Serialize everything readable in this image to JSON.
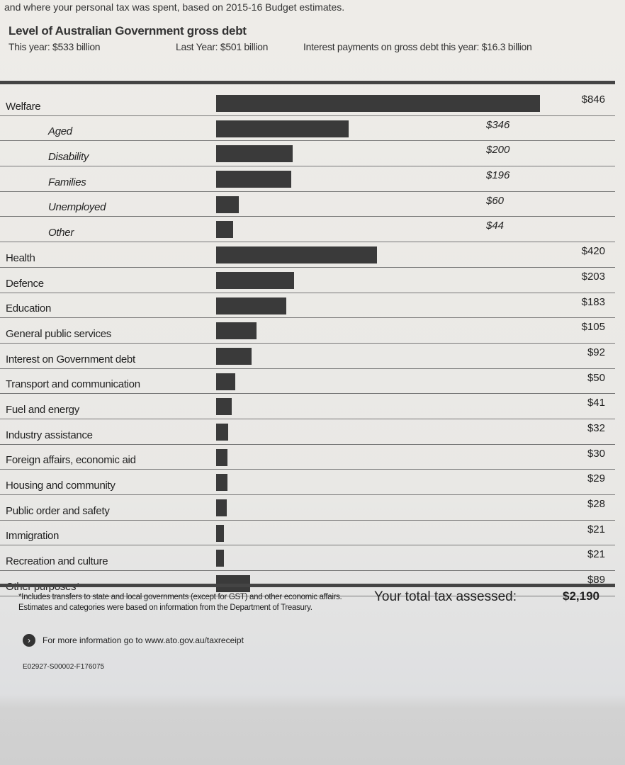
{
  "intro": "and where your personal tax was spent, based on 2015-16 Budget estimates.",
  "debt": {
    "title": "Level of Australian Government gross debt",
    "this_year": "This year: $533 billion",
    "last_year": "Last Year: $501 billion",
    "interest": "Interest payments on gross debt this year: $16.3 billion"
  },
  "chart_data": {
    "type": "bar",
    "title": "",
    "xlabel": "",
    "ylabel": "",
    "xlim": [
      0,
      846
    ],
    "categories": [
      "Welfare",
      "Aged",
      "Disability",
      "Families",
      "Unemployed",
      "Other",
      "Health",
      "Defence",
      "Education",
      "General public services",
      "Interest on Government debt",
      "Transport and communication",
      "Fuel and energy",
      "Industry assistance",
      "Foreign affairs, economic aid",
      "Housing and community",
      "Public order and safety",
      "Immigration",
      "Recreation and culture",
      "Other purposes*"
    ],
    "values": [
      846,
      346,
      200,
      196,
      60,
      44,
      420,
      203,
      183,
      105,
      92,
      50,
      41,
      32,
      30,
      29,
      28,
      21,
      21,
      89
    ],
    "labels": [
      "$846",
      "$346",
      "$200",
      "$196",
      "$60",
      "$44",
      "$420",
      "$203",
      "$183",
      "$105",
      "$92",
      "$50",
      "$41",
      "$32",
      "$30",
      "$29",
      "$28",
      "$21",
      "$21",
      "$89"
    ],
    "sub": [
      false,
      true,
      true,
      true,
      true,
      true,
      false,
      false,
      false,
      false,
      false,
      false,
      false,
      false,
      false,
      false,
      false,
      false,
      false,
      false
    ],
    "bar_color": "#3a3a3a"
  },
  "footer": {
    "note1": "*Includes transfers to state and local governments (except for GST) and other economic affairs.",
    "note2": "Estimates and categories were based on information from the Department of Treasury.",
    "total_label": "Your total tax assessed:",
    "total_value": "$2,190",
    "more_info": "For more information go to www.ato.gov.au/taxreceipt",
    "code": "E02927-S00002-F176075"
  }
}
